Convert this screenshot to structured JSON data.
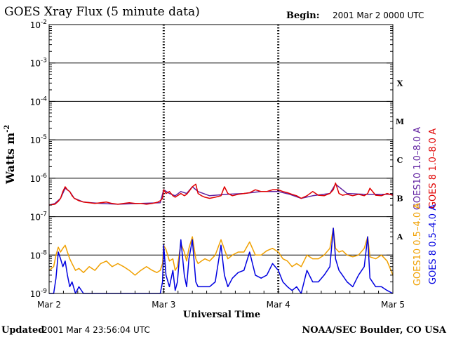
{
  "header": {
    "title": "GOES Xray Flux (5 minute data)",
    "begin_label": "Begin:",
    "begin_value": "2001 Mar 2 0000 UTC"
  },
  "footer": {
    "updated_label": "Updated",
    "updated_value": "2001 Mar  4 23:56:04 UTC",
    "credit": "NOAA/SEC Boulder, CO USA"
  },
  "chart_data": {
    "type": "line",
    "title": "GOES Xray Flux (5 minute data)",
    "ylabel": "Watts m",
    "ylabel_exponent": "-2",
    "xlabel": "Universal Time",
    "y_scale": "log",
    "ylim": [
      1e-09,
      0.01
    ],
    "y_tick_base": "10",
    "y_ticks": [
      {
        "value": 0.01,
        "exp": "-2"
      },
      {
        "value": 0.001,
        "exp": "-3"
      },
      {
        "value": 0.0001,
        "exp": "-4"
      },
      {
        "value": 1e-05,
        "exp": "-5"
      },
      {
        "value": 1e-06,
        "exp": "-6"
      },
      {
        "value": 1e-07,
        "exp": "-7"
      },
      {
        "value": 1e-08,
        "exp": "-8"
      },
      {
        "value": 1e-09,
        "exp": "-9"
      }
    ],
    "x_day_range": [
      0,
      3
    ],
    "x_ticks": [
      {
        "day": 0,
        "label": "Mar 2"
      },
      {
        "day": 1,
        "label": "Mar 3"
      },
      {
        "day": 2,
        "label": "Mar 4"
      },
      {
        "day": 3,
        "label": "Mar 5"
      }
    ],
    "flare_classes": [
      {
        "label": "X",
        "value": 0.0003
      },
      {
        "label": "M",
        "value": 3e-05
      },
      {
        "label": "C",
        "value": 3e-06
      },
      {
        "label": "B",
        "value": 3e-07
      },
      {
        "label": "A",
        "value": 3e-08
      }
    ],
    "grid": true,
    "series": [
      {
        "name": "GOES10 1.0–8.0 A",
        "color": "#6020a0",
        "x": [
          0,
          0.05,
          0.1,
          0.14,
          0.18,
          0.22,
          0.3,
          0.45,
          0.6,
          0.8,
          0.97,
          1.0,
          1.05,
          1.1,
          1.15,
          1.2,
          1.25,
          1.3,
          1.4,
          1.55,
          1.7,
          1.85,
          2.0,
          2.1,
          2.2,
          2.3,
          2.45,
          2.5,
          2.6,
          2.75,
          2.85,
          3.0
        ],
        "y": [
          2e-07,
          2.2e-07,
          3e-07,
          5.5e-07,
          4.5e-07,
          3e-07,
          2.4e-07,
          2.2e-07,
          2.1e-07,
          2.2e-07,
          2.3e-07,
          5e-07,
          4e-07,
          3.5e-07,
          4.5e-07,
          4e-07,
          6e-07,
          4.5e-07,
          3.5e-07,
          3.8e-07,
          4e-07,
          4.5e-07,
          4.5e-07,
          3.8e-07,
          3e-07,
          3.5e-07,
          4e-07,
          7e-07,
          4e-07,
          3.8e-07,
          3.8e-07,
          3.8e-07
        ]
      },
      {
        "name": "GOES 8 1.0–8.0 A",
        "color": "#e00000",
        "x": [
          0,
          0.05,
          0.08,
          0.1,
          0.12,
          0.14,
          0.16,
          0.18,
          0.2,
          0.22,
          0.26,
          0.3,
          0.35,
          0.4,
          0.45,
          0.5,
          0.55,
          0.6,
          0.65,
          0.7,
          0.75,
          0.8,
          0.85,
          0.9,
          0.95,
          0.97,
          0.99,
          1.0,
          1.02,
          1.05,
          1.08,
          1.1,
          1.12,
          1.15,
          1.18,
          1.2,
          1.22,
          1.25,
          1.28,
          1.3,
          1.33,
          1.36,
          1.4,
          1.45,
          1.5,
          1.53,
          1.56,
          1.6,
          1.65,
          1.7,
          1.75,
          1.8,
          1.85,
          1.9,
          1.95,
          2.0,
          2.04,
          2.08,
          2.12,
          2.16,
          2.2,
          2.25,
          2.3,
          2.35,
          2.4,
          2.45,
          2.48,
          2.5,
          2.53,
          2.56,
          2.6,
          2.65,
          2.7,
          2.75,
          2.78,
          2.8,
          2.85,
          2.9,
          2.95,
          3.0
        ],
        "y": [
          2e-07,
          2.1e-07,
          2.5e-07,
          3e-07,
          4.5e-07,
          6e-07,
          5e-07,
          4.5e-07,
          3.5e-07,
          3e-07,
          2.6e-07,
          2.4e-07,
          2.3e-07,
          2.2e-07,
          2.3e-07,
          2.4e-07,
          2.2e-07,
          2.1e-07,
          2.2e-07,
          2.3e-07,
          2.2e-07,
          2.2e-07,
          2.1e-07,
          2.2e-07,
          2.4e-07,
          2.6e-07,
          3e-07,
          5e-07,
          4e-07,
          4.5e-07,
          3.5e-07,
          3.2e-07,
          3.5e-07,
          4e-07,
          3.5e-07,
          3.8e-07,
          4.5e-07,
          6e-07,
          7e-07,
          4e-07,
          3.5e-07,
          3.2e-07,
          3e-07,
          3.2e-07,
          3.5e-07,
          6e-07,
          4e-07,
          3.5e-07,
          3.8e-07,
          4e-07,
          4.2e-07,
          5e-07,
          4.5e-07,
          4.5e-07,
          5e-07,
          5e-07,
          4.5e-07,
          4.2e-07,
          3.8e-07,
          3.5e-07,
          3e-07,
          3.5e-07,
          4.5e-07,
          3.6e-07,
          3.5e-07,
          4e-07,
          5e-07,
          7.5e-07,
          4e-07,
          3.6e-07,
          3.8e-07,
          3.5e-07,
          3.8e-07,
          3.5e-07,
          4e-07,
          5.5e-07,
          3.6e-07,
          3.5e-07,
          4e-07,
          3.6e-07
        ]
      },
      {
        "name": "GOES10 0.5–4.0 A",
        "color": "#f0a000",
        "x": [
          0,
          0.04,
          0.06,
          0.08,
          0.1,
          0.12,
          0.14,
          0.16,
          0.18,
          0.2,
          0.23,
          0.26,
          0.3,
          0.35,
          0.4,
          0.45,
          0.5,
          0.55,
          0.6,
          0.65,
          0.7,
          0.75,
          0.8,
          0.85,
          0.9,
          0.94,
          0.97,
          0.99,
          1.0,
          1.02,
          1.05,
          1.08,
          1.1,
          1.12,
          1.15,
          1.18,
          1.2,
          1.22,
          1.25,
          1.28,
          1.3,
          1.33,
          1.36,
          1.4,
          1.45,
          1.5,
          1.53,
          1.56,
          1.6,
          1.65,
          1.7,
          1.75,
          1.8,
          1.85,
          1.9,
          1.95,
          2.0,
          2.04,
          2.08,
          2.12,
          2.16,
          2.2,
          2.25,
          2.3,
          2.35,
          2.4,
          2.45,
          2.48,
          2.5,
          2.53,
          2.56,
          2.6,
          2.65,
          2.7,
          2.75,
          2.78,
          2.8,
          2.85,
          2.9,
          2.95,
          3.0
        ],
        "y": [
          4e-09,
          5e-09,
          1e-08,
          1.6e-08,
          1.2e-08,
          1.5e-08,
          1.8e-08,
          1.2e-08,
          8e-09,
          6e-09,
          4e-09,
          4.5e-09,
          3.5e-09,
          5e-09,
          4e-09,
          6e-09,
          7e-09,
          5e-09,
          6e-09,
          5e-09,
          4e-09,
          3e-09,
          4e-09,
          5e-09,
          4e-09,
          3.5e-09,
          4e-09,
          6e-09,
          1.8e-08,
          1.4e-08,
          7e-09,
          8e-09,
          4e-09,
          5e-09,
          2e-08,
          1.2e-08,
          7e-09,
          1.5e-08,
          3e-08,
          8e-09,
          6e-09,
          7e-09,
          8e-09,
          7e-09,
          1e-08,
          2.5e-08,
          1.4e-08,
          8e-09,
          1e-08,
          1.2e-08,
          1.2e-08,
          2.2e-08,
          1e-08,
          1e-08,
          1.3e-08,
          1.5e-08,
          1.2e-08,
          8e-09,
          7e-09,
          5e-09,
          6e-09,
          5e-09,
          1e-08,
          8e-09,
          8e-09,
          1e-08,
          1.5e-08,
          5e-08,
          1.5e-08,
          1.2e-08,
          1.3e-08,
          1e-08,
          9e-09,
          1e-08,
          1.5e-08,
          3e-08,
          9e-09,
          8e-09,
          1e-08,
          7e-09,
          3e-09
        ]
      },
      {
        "name": "GOES 8 0.5–4.0 A",
        "color": "#0000e0",
        "x": [
          0,
          0.04,
          0.06,
          0.08,
          0.1,
          0.12,
          0.14,
          0.16,
          0.18,
          0.2,
          0.23,
          0.26,
          0.3,
          0.35,
          0.4,
          0.45,
          0.5,
          0.55,
          0.6,
          0.65,
          0.7,
          0.75,
          0.8,
          0.85,
          0.9,
          0.94,
          0.97,
          0.99,
          1.0,
          1.02,
          1.05,
          1.08,
          1.1,
          1.12,
          1.15,
          1.18,
          1.2,
          1.22,
          1.25,
          1.28,
          1.3,
          1.33,
          1.36,
          1.4,
          1.45,
          1.5,
          1.53,
          1.56,
          1.6,
          1.65,
          1.7,
          1.75,
          1.8,
          1.85,
          1.9,
          1.95,
          2.0,
          2.04,
          2.08,
          2.12,
          2.16,
          2.2,
          2.25,
          2.3,
          2.35,
          2.4,
          2.45,
          2.48,
          2.5,
          2.53,
          2.56,
          2.6,
          2.65,
          2.7,
          2.75,
          2.78,
          2.8,
          2.85,
          2.9,
          2.95,
          3.0
        ],
        "y": [
          1e-09,
          1e-09,
          2.5e-09,
          1.2e-08,
          8e-09,
          5e-09,
          7e-09,
          3e-09,
          1.5e-09,
          2e-09,
          1e-09,
          1.5e-09,
          1e-09,
          1e-09,
          1e-09,
          1e-09,
          1e-09,
          1e-09,
          1e-09,
          1e-09,
          1e-09,
          1e-09,
          1e-09,
          1e-09,
          1e-09,
          1e-09,
          1e-09,
          2e-09,
          1.8e-08,
          3e-09,
          1.5e-09,
          4e-09,
          1.2e-09,
          2e-09,
          2.5e-08,
          3e-09,
          1.5e-09,
          8e-09,
          2.5e-08,
          2e-09,
          1.5e-09,
          1.5e-09,
          1.5e-09,
          1.5e-09,
          2e-09,
          1.8e-08,
          3e-09,
          1.5e-09,
          2.5e-09,
          3.5e-09,
          4e-09,
          1.2e-08,
          3e-09,
          2.5e-09,
          3e-09,
          6e-09,
          4e-09,
          2e-09,
          1.5e-09,
          1.2e-09,
          1.5e-09,
          1e-09,
          4e-09,
          2e-09,
          2e-09,
          3e-09,
          5e-09,
          5e-08,
          8e-09,
          4e-09,
          3e-09,
          2e-09,
          1.5e-09,
          3e-09,
          5e-09,
          3e-08,
          2.5e-09,
          1.5e-09,
          1.5e-09,
          1.2e-09,
          1e-09
        ]
      }
    ]
  }
}
